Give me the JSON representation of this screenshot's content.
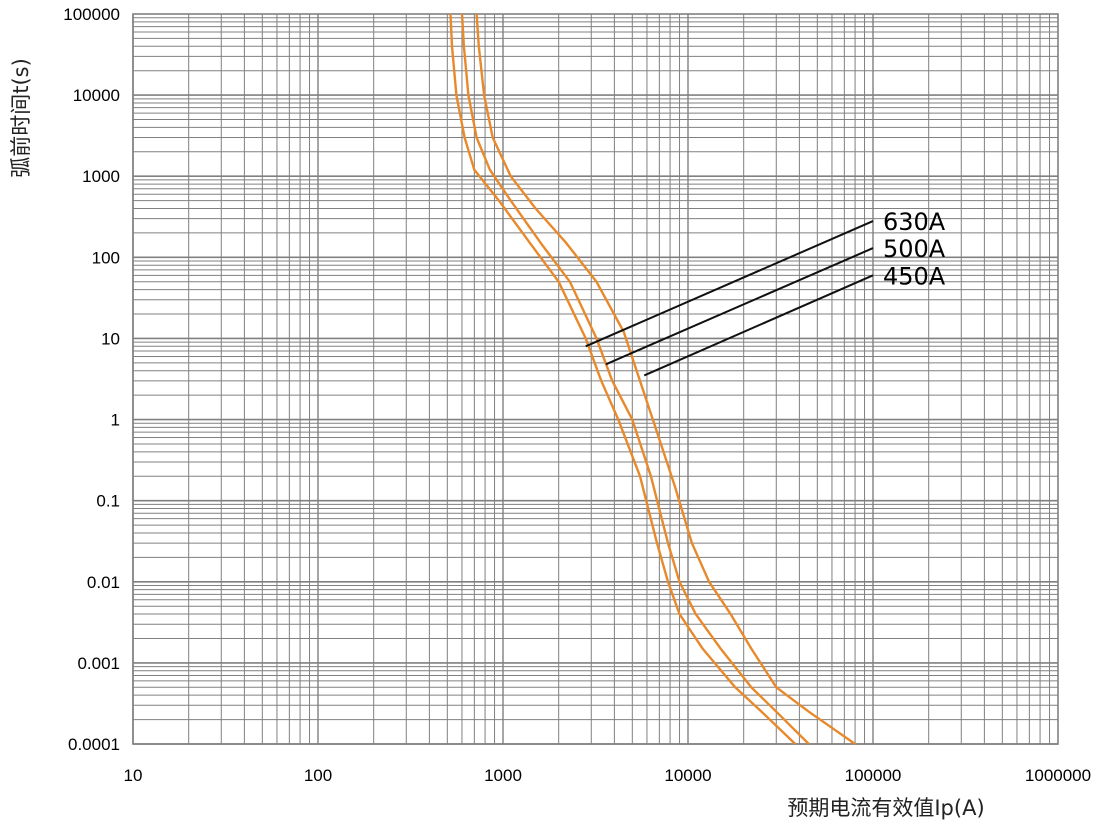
{
  "chart_data": {
    "type": "line",
    "title": "",
    "xlabel": "预期电流有效值Ip(A)",
    "ylabel": "弧前时间t(s)",
    "x_scale": "log",
    "y_scale": "log",
    "xlim": [
      10,
      1000000
    ],
    "ylim": [
      0.0001,
      100000
    ],
    "grid": true,
    "x_tick_labels": [
      "10",
      "100",
      "1000",
      "10000",
      "100000",
      "1000000"
    ],
    "y_tick_labels": [
      "0.0001",
      "0.001",
      "0.01",
      "0.1",
      "1",
      "10",
      "100",
      "1000",
      "10000",
      "100000"
    ],
    "line_color": "#E8892B",
    "grid_color": "#808080",
    "series": [
      {
        "name": "450A",
        "points": [
          [
            520,
            100000
          ],
          [
            530,
            40000
          ],
          [
            560,
            10000
          ],
          [
            620,
            3000
          ],
          [
            700,
            1200
          ],
          [
            950,
            500
          ],
          [
            1400,
            150
          ],
          [
            2000,
            50
          ],
          [
            2800,
            10
          ],
          [
            3400,
            3
          ],
          [
            4200,
            1
          ],
          [
            5500,
            0.2
          ],
          [
            6800,
            0.03
          ],
          [
            7800,
            0.01
          ],
          [
            9000,
            0.004
          ],
          [
            12000,
            0.0015
          ],
          [
            18000,
            0.0005
          ],
          [
            25000,
            0.00025
          ],
          [
            38000,
            0.0001
          ]
        ]
      },
      {
        "name": "500A",
        "points": [
          [
            600,
            100000
          ],
          [
            615,
            40000
          ],
          [
            650,
            10000
          ],
          [
            720,
            3000
          ],
          [
            850,
            1200
          ],
          [
            1100,
            500
          ],
          [
            1600,
            150
          ],
          [
            2300,
            50
          ],
          [
            3200,
            10
          ],
          [
            3900,
            3
          ],
          [
            5000,
            1
          ],
          [
            6300,
            0.2
          ],
          [
            7800,
            0.03
          ],
          [
            9000,
            0.01
          ],
          [
            11000,
            0.004
          ],
          [
            15000,
            0.0015
          ],
          [
            22000,
            0.0005
          ],
          [
            30000,
            0.00025
          ],
          [
            45000,
            0.0001
          ]
        ]
      },
      {
        "name": "630A",
        "points": [
          [
            720,
            100000
          ],
          [
            740,
            40000
          ],
          [
            790,
            10000
          ],
          [
            880,
            3000
          ],
          [
            1100,
            1000
          ],
          [
            1500,
            400
          ],
          [
            2200,
            150
          ],
          [
            3200,
            50
          ],
          [
            4500,
            12
          ],
          [
            5500,
            3
          ],
          [
            6800,
            0.7
          ],
          [
            8500,
            0.15
          ],
          [
            10500,
            0.03
          ],
          [
            13000,
            0.01
          ],
          [
            17000,
            0.004
          ],
          [
            22000,
            0.0015
          ],
          [
            30000,
            0.0005
          ],
          [
            45000,
            0.00025
          ],
          [
            80000,
            0.0001
          ]
        ]
      }
    ],
    "annotations": [
      {
        "text": "630A",
        "from": [
          2800,
          8
        ],
        "to": [
          100000,
          280
        ]
      },
      {
        "text": "500A",
        "from": [
          3600,
          4.8
        ],
        "to": [
          100000,
          130
        ]
      },
      {
        "text": "450A",
        "from": [
          5800,
          3.5
        ],
        "to": [
          100000,
          60
        ]
      }
    ]
  }
}
